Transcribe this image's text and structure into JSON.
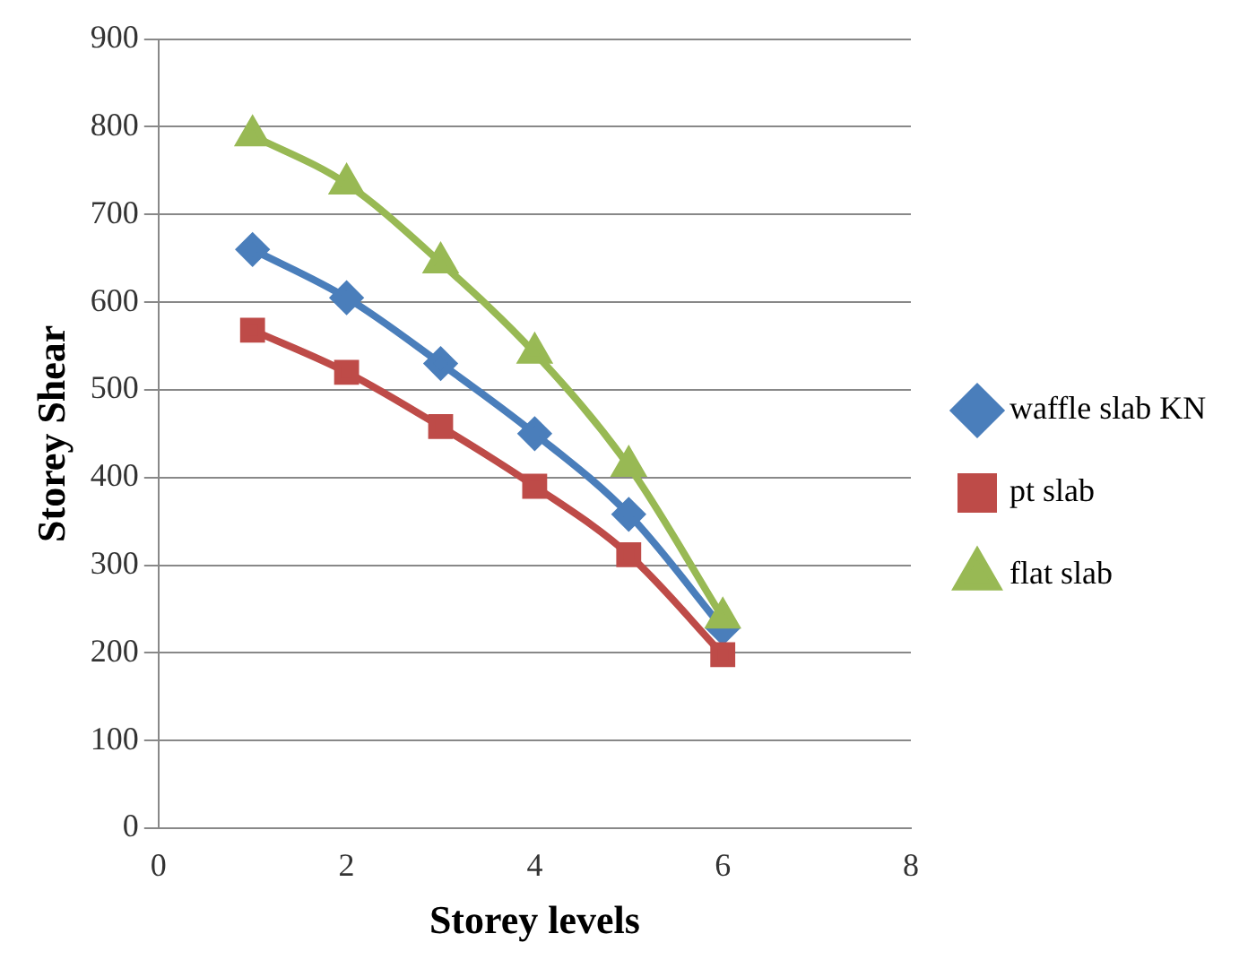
{
  "chart_data": {
    "type": "line",
    "xlabel": "Storey levels",
    "ylabel": "Storey Shear",
    "x": [
      1,
      2,
      3,
      4,
      5,
      6
    ],
    "series": [
      {
        "name": "waffle slab KN",
        "color": "#4a7ebb",
        "marker": "diamond",
        "values": [
          660,
          605,
          530,
          450,
          358,
          228
        ]
      },
      {
        "name": "pt slab",
        "color": "#be4b48",
        "marker": "square",
        "values": [
          568,
          520,
          458,
          390,
          312,
          198
        ]
      },
      {
        "name": "flat slab",
        "color": "#98b954",
        "marker": "triangle",
        "values": [
          790,
          735,
          645,
          542,
          413,
          240
        ]
      }
    ],
    "xlim": [
      0,
      8
    ],
    "xticks": [
      0,
      2,
      4,
      6,
      8
    ],
    "ylim": [
      0,
      900
    ],
    "yticks": [
      0,
      100,
      200,
      300,
      400,
      500,
      600,
      700,
      800,
      900
    ],
    "grid": "y",
    "legend": "right"
  }
}
